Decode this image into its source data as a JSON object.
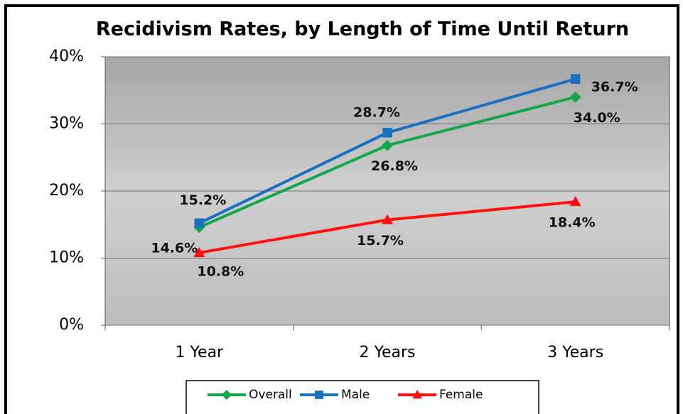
{
  "chart_data": {
    "type": "line",
    "title": "Recidivism Rates, by Length of Time Until Return",
    "categories": [
      "1 Year",
      "2 Years",
      "3 Years"
    ],
    "series": [
      {
        "name": "Overall",
        "color": "#12a84a",
        "marker": "diamond",
        "values": [
          14.6,
          26.8,
          34.0
        ],
        "value_labels": [
          "14.6%",
          "26.8%",
          "34.0%"
        ]
      },
      {
        "name": "Male",
        "color": "#1a70c0",
        "marker": "square",
        "values": [
          15.2,
          28.7,
          36.7
        ],
        "value_labels": [
          "15.2%",
          "28.7%",
          "36.7%"
        ]
      },
      {
        "name": "Female",
        "color": "#ff1010",
        "marker": "triangle",
        "values": [
          10.8,
          15.7,
          18.4
        ],
        "value_labels": [
          "10.8%",
          "15.7%",
          "18.4%"
        ]
      }
    ],
    "ylim": [
      0,
      40
    ],
    "yticks": [
      {
        "value": 0,
        "label": "0%"
      },
      {
        "value": 10,
        "label": "10%"
      },
      {
        "value": 20,
        "label": "20%"
      },
      {
        "value": 30,
        "label": "30%"
      },
      {
        "value": 40,
        "label": "40%"
      }
    ],
    "grid": true,
    "legend": "bottom"
  }
}
